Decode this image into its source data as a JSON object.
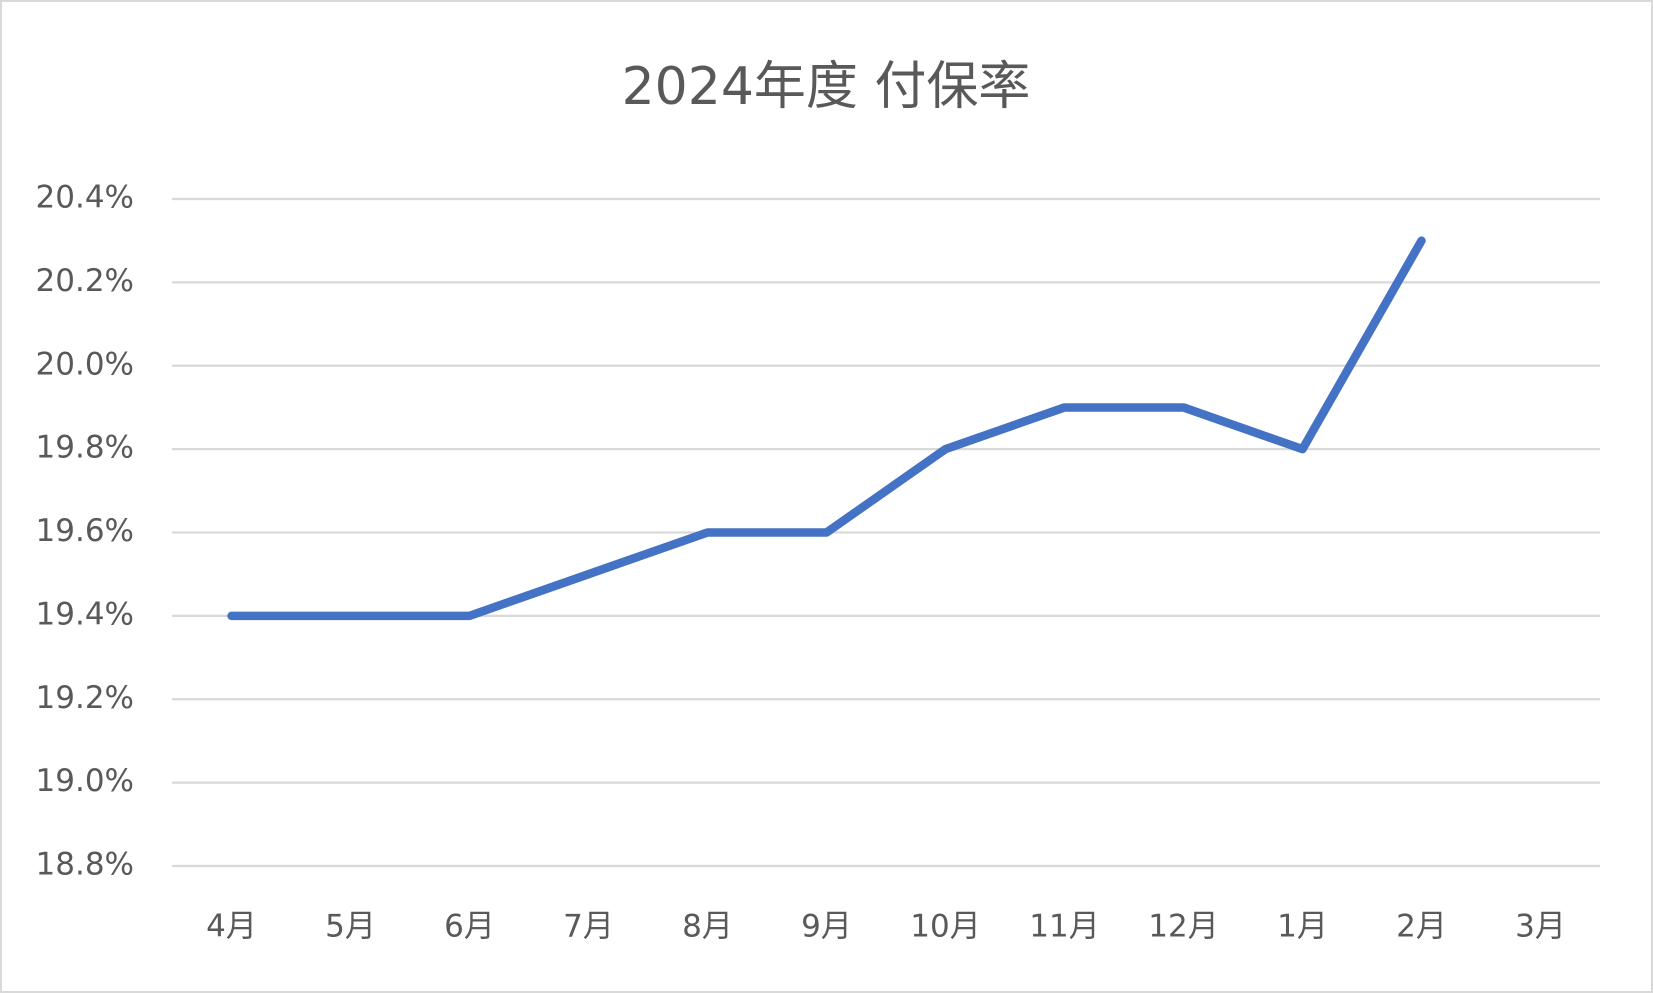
{
  "chart_data": {
    "type": "line",
    "title": "2024年度 付保率",
    "categories": [
      "4月",
      "5月",
      "6月",
      "7月",
      "8月",
      "9月",
      "10月",
      "11月",
      "12月",
      "1月",
      "2月",
      "3月"
    ],
    "values": [
      19.4,
      19.4,
      19.4,
      19.5,
      19.6,
      19.6,
      19.8,
      19.9,
      19.9,
      19.8,
      20.3,
      null
    ],
    "color": "#4472c4",
    "ylim": [
      18.8,
      20.4
    ],
    "yticks": [
      {
        "value": 18.8,
        "label": "18.8%"
      },
      {
        "value": 19.0,
        "label": "19.0%"
      },
      {
        "value": 19.2,
        "label": "19.2%"
      },
      {
        "value": 19.4,
        "label": "19.4%"
      },
      {
        "value": 19.6,
        "label": "19.6%"
      },
      {
        "value": 19.8,
        "label": "19.8%"
      },
      {
        "value": 20.0,
        "label": "20.0%"
      },
      {
        "value": 20.2,
        "label": "20.2%"
      },
      {
        "value": 20.4,
        "label": "20.4%"
      }
    ],
    "grid": true
  }
}
